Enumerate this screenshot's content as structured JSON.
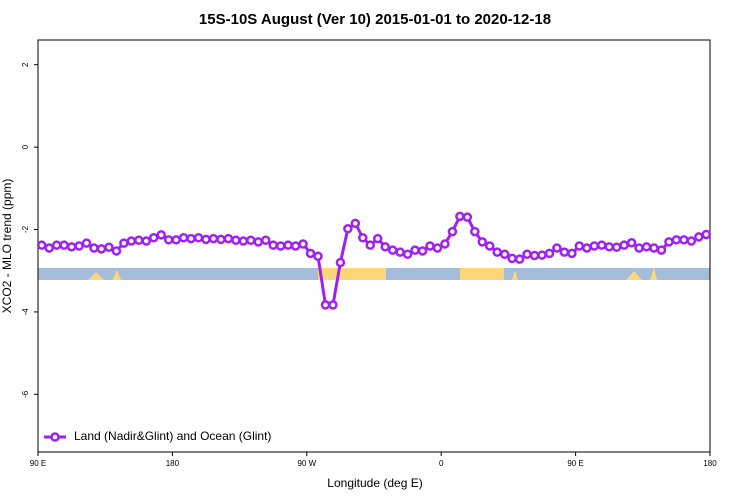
{
  "chart_data": {
    "type": "line",
    "title": "15S-10S August (Ver 10)   2015-01-01 to 2020-12-18",
    "x_label": "Longitude (deg E)",
    "y_label": "XCO2 - MLO trend (ppm)",
    "xlim": [
      90,
      540
    ],
    "ylim": [
      -7.4,
      2.6
    ],
    "xticks": [
      {
        "value": 90,
        "label": "90 E"
      },
      180,
      {
        "value": 270,
        "label": "90 W"
      },
      {
        "value": 360,
        "label": "0"
      },
      {
        "value": 450,
        "label": "90 E"
      },
      {
        "value": 540,
        "label": "180"
      }
    ],
    "yticks": [
      2,
      0,
      -2,
      -4,
      -6
    ],
    "legend": "bottom-left",
    "x": [
      92.5,
      97.5,
      102.5,
      107.5,
      112.5,
      117.5,
      122.5,
      127.5,
      132.5,
      137.5,
      142.5,
      147.5,
      152.5,
      157.5,
      162.5,
      167.5,
      172.5,
      177.5,
      182.5,
      187.5,
      192.5,
      197.5,
      202.5,
      207.5,
      212.5,
      217.5,
      222.5,
      227.5,
      232.5,
      237.5,
      242.5,
      247.5,
      252.5,
      257.5,
      262.5,
      267.5,
      272.5,
      277.5,
      282.5,
      287.5,
      292.5,
      297.5,
      302.5,
      307.5,
      312.5,
      317.5,
      322.5,
      327.5,
      332.5,
      337.5,
      342.5,
      347.5,
      352.5,
      357.5,
      362.5,
      367.5,
      372.5,
      377.5,
      382.5,
      387.5,
      392.5,
      397.5,
      402.5,
      407.5,
      412.5,
      417.5,
      422.5,
      427.5,
      432.5,
      437.5,
      442.5,
      447.5,
      452.5,
      457.5,
      462.5,
      467.5,
      472.5,
      477.5,
      482.5,
      487.5,
      492.5,
      497.5,
      502.5,
      507.5,
      512.5,
      517.5,
      522.5,
      527.5,
      532.5,
      537.5
    ],
    "series": [
      {
        "name": "Land (Nadir&Glint) and Ocean (Glint)",
        "color": "#a020f0",
        "values": [
          -2.38,
          -2.45,
          -2.38,
          -2.38,
          -2.42,
          -2.4,
          -2.33,
          -2.45,
          -2.47,
          -2.43,
          -2.52,
          -2.33,
          -2.28,
          -2.26,
          -2.28,
          -2.2,
          -2.13,
          -2.25,
          -2.25,
          -2.2,
          -2.22,
          -2.2,
          -2.24,
          -2.22,
          -2.24,
          -2.22,
          -2.26,
          -2.28,
          -2.26,
          -2.3,
          -2.26,
          -2.38,
          -2.4,
          -2.38,
          -2.4,
          -2.35,
          -2.58,
          -2.65,
          -3.83,
          -3.83,
          -2.8,
          -1.98,
          -1.85,
          -2.2,
          -2.38,
          -2.22,
          -2.42,
          -2.5,
          -2.55,
          -2.6,
          -2.5,
          -2.52,
          -2.4,
          -2.45,
          -2.35,
          -2.05,
          -1.68,
          -1.7,
          -2.05,
          -2.3,
          -2.4,
          -2.55,
          -2.6,
          -2.7,
          -2.72,
          -2.6,
          -2.63,
          -2.62,
          -2.58,
          -2.45,
          -2.55,
          -2.58,
          -2.4,
          -2.45,
          -2.4,
          -2.38,
          -2.42,
          -2.43,
          -2.38,
          -2.32,
          -2.45,
          -2.42,
          -2.45,
          -2.5,
          -2.3,
          -2.25,
          -2.25,
          -2.28,
          -2.18,
          -2.12
        ]
      }
    ]
  }
}
